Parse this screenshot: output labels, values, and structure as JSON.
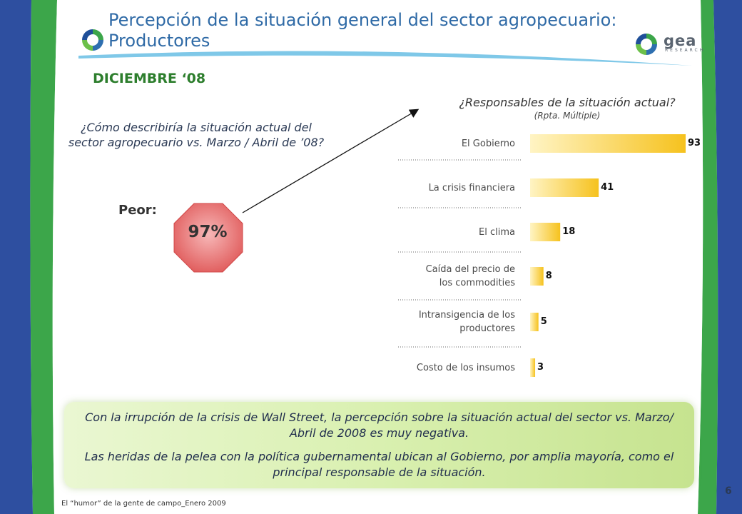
{
  "slide": {
    "title": "Percepción de la situación general del sector agropecuario:\nProductores",
    "month": "DICIEMBRE ‘08",
    "question": "¿Cómo describiría la situación actual del sector agropecuario vs. Marzo / Abril de ’08?",
    "peor_label": "Peor:",
    "peor_value": "97%",
    "brand": {
      "word": "gea",
      "sub": "RESEARCH"
    },
    "footer": "El “humor” de la gente de campo_Enero 2009",
    "page_number": "6",
    "colors": {
      "title": "#2f6aa6",
      "month": "#2d7e2d",
      "stop": "#e05a5a",
      "bar": "#f6c21e",
      "right_band": "#2e4fa0",
      "green_band": "#3ca64a"
    }
  },
  "note": {
    "p1": "Con la irrupción de la crisis de Wall Street, la percepción sobre la situación actual del sector vs. Marzo/ Abril de 2008 es muy negativa.",
    "p2": "Las heridas de la pelea con la política gubernamental ubican al Gobierno, por amplia mayoría, como el principal responsable de la situación."
  },
  "chart_data": {
    "type": "bar",
    "orientation": "horizontal",
    "title": "¿Responsables de la situación actual?",
    "subtitle": "(Rpta. Múltiple)",
    "categories": [
      "El Gobierno",
      "La crisis financiera",
      "El clima",
      "Caída del precio de los commodities",
      "Intransigencia de los productores",
      "Costo de los insumos"
    ],
    "category_lines": [
      [
        "El Gobierno"
      ],
      [
        "La crisis financiera"
      ],
      [
        "El clima"
      ],
      [
        "Caída del precio de",
        "los commodities"
      ],
      [
        "Intransigencia de los",
        "productores"
      ],
      [
        "Costo de los insumos"
      ]
    ],
    "values": [
      93,
      41,
      18,
      8,
      5,
      3
    ],
    "value_labels": [
      "93",
      "41",
      "18",
      "8",
      "5",
      "3"
    ],
    "xlim": [
      0,
      93
    ],
    "grid": false
  }
}
